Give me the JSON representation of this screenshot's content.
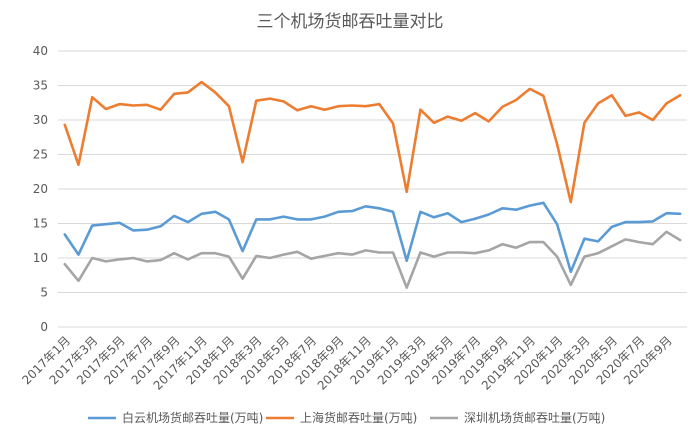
{
  "chart_data": {
    "type": "line",
    "title": "三个机场货邮吞吐量对比",
    "xlabel": "",
    "ylabel": "",
    "ylim": [
      0,
      40
    ],
    "yticks": [
      0,
      5,
      10,
      15,
      20,
      25,
      30,
      35,
      40
    ],
    "grid": true,
    "legend_position": "bottom",
    "categories": [
      "2017年1月",
      "2017年2月",
      "2017年3月",
      "2017年4月",
      "2017年5月",
      "2017年6月",
      "2017年7月",
      "2017年8月",
      "2017年9月",
      "2017年10月",
      "2017年11月",
      "2017年12月",
      "2018年1月",
      "2018年2月",
      "2018年3月",
      "2018年4月",
      "2018年5月",
      "2018年6月",
      "2018年7月",
      "2018年8月",
      "2018年9月",
      "2018年10月",
      "2018年11月",
      "2018年12月",
      "2019年1月",
      "2019年2月",
      "2019年3月",
      "2019年4月",
      "2019年5月",
      "2019年6月",
      "2019年7月",
      "2019年8月",
      "2019年9月",
      "2019年10月",
      "2019年11月",
      "2019年12月",
      "2020年1月",
      "2020年2月",
      "2020年3月",
      "2020年4月",
      "2020年5月",
      "2020年6月",
      "2020年7月",
      "2020年8月",
      "2020年9月",
      "2020年10月"
    ],
    "tick_labels": [
      "2017年1月",
      "2017年3月",
      "2017年5月",
      "2017年7月",
      "2017年9月",
      "2017年11月",
      "2018年1月",
      "2018年3月",
      "2018年5月",
      "2018年7月",
      "2018年9月",
      "2018年11月",
      "2019年1月",
      "2019年3月",
      "2019年5月",
      "2019年7月",
      "2019年9月",
      "2019年11月",
      "2020年1月",
      "2020年3月",
      "2020年5月",
      "2020年7月",
      "2020年9月"
    ],
    "series": [
      {
        "name": "白云机场货邮吞吐量(万吨)",
        "color": "#5b9bd5",
        "values": [
          13.4,
          10.5,
          14.7,
          14.9,
          15.1,
          14.0,
          14.1,
          14.6,
          16.1,
          15.2,
          16.4,
          16.7,
          15.6,
          11.0,
          15.6,
          15.6,
          16.0,
          15.6,
          15.6,
          16.0,
          16.7,
          16.8,
          17.5,
          17.2,
          16.7,
          9.6,
          16.7,
          15.9,
          16.5,
          15.2,
          15.7,
          16.3,
          17.2,
          17.0,
          17.6,
          18.0,
          14.9,
          8.0,
          12.8,
          12.4,
          14.5,
          15.2,
          15.2,
          15.3,
          16.5,
          16.4
        ]
      },
      {
        "name": "上海货邮吞吐量(万吨)",
        "color": "#ed7d31",
        "values": [
          29.3,
          23.5,
          33.3,
          31.6,
          32.3,
          32.1,
          32.2,
          31.5,
          33.8,
          34.0,
          35.5,
          34.0,
          32.0,
          23.9,
          32.8,
          33.1,
          32.7,
          31.4,
          32.0,
          31.5,
          32.0,
          32.1,
          32.0,
          32.3,
          29.5,
          19.6,
          31.5,
          29.6,
          30.5,
          29.9,
          31.0,
          29.8,
          31.9,
          32.9,
          34.5,
          33.5,
          26.5,
          18.1,
          29.6,
          32.4,
          33.6,
          30.6,
          31.1,
          30.0,
          32.4,
          33.6
        ]
      },
      {
        "name": "深圳机场货邮吞吐量(万吨)",
        "color": "#a5a5a5",
        "values": [
          9.1,
          6.7,
          10.0,
          9.5,
          9.8,
          10.0,
          9.5,
          9.7,
          10.7,
          9.8,
          10.7,
          10.7,
          10.2,
          7.0,
          10.3,
          10.0,
          10.5,
          10.9,
          9.9,
          10.3,
          10.7,
          10.5,
          11.1,
          10.8,
          10.8,
          5.7,
          10.8,
          10.2,
          10.8,
          10.8,
          10.7,
          11.1,
          12.0,
          11.5,
          12.3,
          12.3,
          10.2,
          6.1,
          10.2,
          10.7,
          11.7,
          12.7,
          12.3,
          12.0,
          13.8,
          12.6
        ]
      }
    ]
  }
}
